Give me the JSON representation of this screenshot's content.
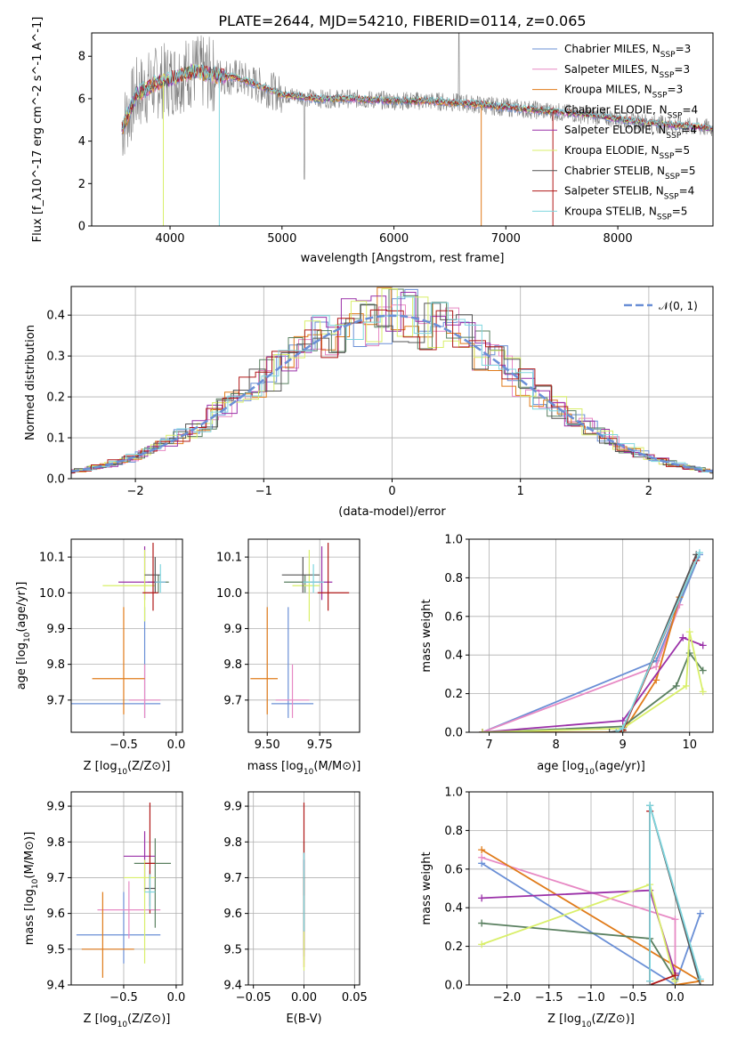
{
  "colors": [
    "#6a8fd6",
    "#e789c4",
    "#e07b1a",
    "#5a8060",
    "#9a30a8",
    "#d9ef6a",
    "#555555",
    "#b01818",
    "#7fd6df"
  ],
  "chart_data": [
    {
      "id": "spectrum",
      "type": "line",
      "title": "PLATE=2644, MJD=54210, FIBERID=0114, z=0.065",
      "xlabel": "wavelength [Angstrom, rest frame]",
      "ylabel": "Flux [f_λ10^-17 erg cm^-2 s^-1 A^-1]",
      "xlim": [
        3300,
        8850
      ],
      "ylim": [
        0,
        9.1
      ],
      "xticks": [
        4000,
        5000,
        6000,
        7000,
        8000
      ],
      "yticks": [
        0,
        2,
        4,
        6,
        8
      ],
      "legend_position": "top-right",
      "legend": [
        {
          "base": "Chabrier MILES, N",
          "sub": "SSP",
          "suffix": "=3"
        },
        {
          "base": "Salpeter MILES, N",
          "sub": "SSP",
          "suffix": "=3"
        },
        {
          "base": "Kroupa MILES, N",
          "sub": "SSP",
          "suffix": "=3"
        },
        {
          "base": "Chabrier ELODIE, N",
          "sub": "SSP",
          "suffix": "=4"
        },
        {
          "base": "Salpeter ELODIE, N",
          "sub": "SSP",
          "suffix": "=4"
        },
        {
          "base": "Kroupa ELODIE, N",
          "sub": "SSP",
          "suffix": "=5"
        },
        {
          "base": "Chabrier STELIB, N",
          "sub": "SSP",
          "suffix": "=5"
        },
        {
          "base": "Salpeter STELIB, N",
          "sub": "SSP",
          "suffix": "=4"
        },
        {
          "base": "Kroupa STELIB, N",
          "sub": "SSP",
          "suffix": "=5"
        }
      ],
      "continuum": [
        [
          3570,
          4.6
        ],
        [
          3700,
          6.2
        ],
        [
          3900,
          6.8
        ],
        [
          4000,
          6.9
        ],
        [
          4200,
          7.3
        ],
        [
          4400,
          7.1
        ],
        [
          4600,
          7.0
        ],
        [
          4800,
          6.6
        ],
        [
          5000,
          6.2
        ],
        [
          5300,
          6.0
        ],
        [
          5600,
          6.0
        ],
        [
          6000,
          5.9
        ],
        [
          6300,
          5.9
        ],
        [
          6600,
          5.8
        ],
        [
          7000,
          5.6
        ],
        [
          7400,
          5.4
        ],
        [
          7800,
          5.2
        ],
        [
          8200,
          4.9
        ],
        [
          8600,
          4.7
        ],
        [
          8850,
          4.6
        ]
      ]
    },
    {
      "id": "residuals",
      "type": "line",
      "xlabel": "(data-model)/error",
      "ylabel": "Normed distribution",
      "xlim": [
        -2.5,
        2.5
      ],
      "ylim": [
        0,
        0.47
      ],
      "xticks": [
        -2,
        -1,
        0,
        1,
        2
      ],
      "yticks": [
        0.0,
        0.1,
        0.2,
        0.3,
        0.4
      ],
      "legend_position": "top-right",
      "legend": [
        {
          "label": "𝒩(0, 1)"
        }
      ],
      "gaussian": {
        "mu": 0,
        "sigma": 1
      }
    },
    {
      "id": "age_vs_Z",
      "type": "scatter",
      "xlabel": "Z [log10(Z/Z⊙)]",
      "ylabel": "age  [log10(age/yr)]",
      "xlim": [
        -1.0,
        0.06
      ],
      "ylim": [
        9.61,
        10.15
      ],
      "xticks": [
        -0.5,
        0.0
      ],
      "yticks": [
        9.7,
        9.8,
        9.9,
        10.0,
        10.1
      ],
      "points": [
        {
          "x": -0.3,
          "xe": [
            0.8,
            0.15
          ],
          "y": 9.69,
          "ye": [
            0.04,
            0.27
          ]
        },
        {
          "x": -0.3,
          "xe": [
            0.15,
            0.15
          ],
          "y": 9.7,
          "ye": [
            0.05,
            0.1
          ]
        },
        {
          "x": -0.5,
          "xe": [
            0.3,
            0.2
          ],
          "y": 9.76,
          "ye": [
            0.1,
            0.2
          ]
        },
        {
          "x": -0.17,
          "xe": [
            0.1,
            0.1
          ],
          "y": 10.03,
          "ye": [
            0.03,
            0.02
          ]
        },
        {
          "x": -0.3,
          "xe": [
            0.25,
            0.2
          ],
          "y": 10.03,
          "ye": [
            0.05,
            0.1
          ]
        },
        {
          "x": -0.3,
          "xe": [
            0.4,
            0.1
          ],
          "y": 10.02,
          "ye": [
            0.1,
            0.1
          ]
        },
        {
          "x": -0.2,
          "xe": [
            0.1,
            0.05
          ],
          "y": 10.05,
          "ye": [
            0.05,
            0.05
          ]
        },
        {
          "x": -0.22,
          "xe": [
            0.1,
            0.05
          ],
          "y": 10.0,
          "ye": [
            0.05,
            0.14
          ]
        },
        {
          "x": -0.15,
          "xe": [
            0.05,
            0.05
          ],
          "y": 10.03,
          "ye": [
            0.03,
            0.05
          ]
        }
      ]
    },
    {
      "id": "age_vs_mass",
      "type": "scatter",
      "xlabel": "mass [log10(M/M⊙)]",
      "ylabel": "",
      "xlim": [
        9.41,
        9.94
      ],
      "ylim": [
        9.61,
        10.15
      ],
      "xticks": [
        9.5,
        9.75
      ],
      "yticks": [
        9.7,
        9.8,
        9.9,
        10.0,
        10.1
      ],
      "points": [
        {
          "x": 9.6,
          "xe": [
            0.08,
            0.12
          ],
          "y": 9.69,
          "ye": [
            0.04,
            0.27
          ]
        },
        {
          "x": 9.62,
          "xe": [
            0.08,
            0.08
          ],
          "y": 9.7,
          "ye": [
            0.05,
            0.1
          ]
        },
        {
          "x": 9.5,
          "xe": [
            0.08,
            0.05
          ],
          "y": 9.76,
          "ye": [
            0.1,
            0.2
          ]
        },
        {
          "x": 9.68,
          "xe": [
            0.1,
            0.08
          ],
          "y": 10.03,
          "ye": [
            0.03,
            0.02
          ]
        },
        {
          "x": 9.76,
          "xe": [
            0.05,
            0.05
          ],
          "y": 10.03,
          "ye": [
            0.05,
            0.1
          ]
        },
        {
          "x": 9.7,
          "xe": [
            0.08,
            0.05
          ],
          "y": 10.02,
          "ye": [
            0.1,
            0.1
          ]
        },
        {
          "x": 9.67,
          "xe": [
            0.1,
            0.08
          ],
          "y": 10.05,
          "ye": [
            0.05,
            0.05
          ]
        },
        {
          "x": 9.79,
          "xe": [
            0.05,
            0.1
          ],
          "y": 10.0,
          "ye": [
            0.05,
            0.14
          ]
        },
        {
          "x": 9.72,
          "xe": [
            0.05,
            0.05
          ],
          "y": 10.03,
          "ye": [
            0.03,
            0.05
          ]
        }
      ]
    },
    {
      "id": "massweight_vs_age",
      "type": "line",
      "xlabel": "age  [log10(age/yr)]",
      "ylabel": "mass weight",
      "xlim": [
        6.7,
        10.35
      ],
      "ylim": [
        0,
        1.0
      ],
      "xticks": [
        7,
        8,
        9,
        10
      ],
      "yticks": [
        0.0,
        0.2,
        0.4,
        0.6,
        0.8,
        1.0
      ],
      "series": [
        {
          "points": [
            [
              6.9,
              0.0
            ],
            [
              9.5,
              0.37
            ],
            [
              10.15,
              0.92
            ]
          ]
        },
        {
          "points": [
            [
              6.9,
              0.0
            ],
            [
              9.5,
              0.34
            ],
            [
              9.85,
              0.66
            ]
          ]
        },
        {
          "points": [
            [
              6.9,
              0.0
            ],
            [
              9.0,
              0.0
            ],
            [
              9.5,
              0.27
            ],
            [
              9.85,
              0.7
            ]
          ]
        },
        {
          "points": [
            [
              6.9,
              0.0
            ],
            [
              9.0,
              0.03
            ],
            [
              9.8,
              0.24
            ],
            [
              10.0,
              0.41
            ],
            [
              10.2,
              0.32
            ]
          ]
        },
        {
          "points": [
            [
              6.9,
              0.0
            ],
            [
              9.0,
              0.06
            ],
            [
              9.9,
              0.49
            ],
            [
              10.2,
              0.45
            ]
          ]
        },
        {
          "points": [
            [
              6.9,
              0.0
            ],
            [
              9.0,
              0.02
            ],
            [
              9.95,
              0.24
            ],
            [
              10.0,
              0.52
            ],
            [
              10.2,
              0.21
            ]
          ]
        },
        {
          "points": [
            [
              8.8,
              0.0
            ],
            [
              9.0,
              0.01
            ],
            [
              10.1,
              0.92
            ]
          ]
        },
        {
          "points": [
            [
              8.9,
              0.0
            ],
            [
              9.0,
              0.01
            ],
            [
              10.1,
              0.89
            ]
          ]
        },
        {
          "points": [
            [
              8.9,
              0.0
            ],
            [
              9.0,
              0.02
            ],
            [
              10.15,
              0.93
            ]
          ]
        }
      ]
    },
    {
      "id": "mass_vs_Z",
      "type": "scatter",
      "xlabel": "Z [log10(Z/Z⊙)]",
      "ylabel": "mass [log10(M/M⊙)]",
      "xlim": [
        -1.0,
        0.06
      ],
      "ylim": [
        9.4,
        9.94
      ],
      "xticks": [
        -0.5,
        0.0
      ],
      "yticks": [
        9.4,
        9.5,
        9.6,
        9.7,
        9.8,
        9.9
      ],
      "points": [
        {
          "x": -0.5,
          "xe": [
            0.45,
            0.35
          ],
          "y": 9.54,
          "ye": [
            0.08,
            0.12
          ]
        },
        {
          "x": -0.45,
          "xe": [
            0.3,
            0.3
          ],
          "y": 9.61,
          "ye": [
            0.08,
            0.08
          ]
        },
        {
          "x": -0.7,
          "xe": [
            0.2,
            0.3
          ],
          "y": 9.5,
          "ye": [
            0.08,
            0.16
          ]
        },
        {
          "x": -0.2,
          "xe": [
            0.2,
            0.15
          ],
          "y": 9.74,
          "ye": [
            0.18,
            0.07
          ]
        },
        {
          "x": -0.3,
          "xe": [
            0.2,
            0.1
          ],
          "y": 9.76,
          "ye": [
            0.1,
            0.07
          ]
        },
        {
          "x": -0.3,
          "xe": [
            0.2,
            0.1
          ],
          "y": 9.7,
          "ye": [
            0.24,
            0.05
          ]
        },
        {
          "x": -0.25,
          "xe": [
            0.05,
            0.05
          ],
          "y": 9.67,
          "ye": [
            0.05,
            0.05
          ]
        },
        {
          "x": -0.25,
          "xe": [
            0.05,
            0.05
          ],
          "y": 9.74,
          "ye": [
            0.14,
            0.17
          ]
        },
        {
          "x": -0.25,
          "xe": [
            0.05,
            0.05
          ],
          "y": 9.66,
          "ye": [
            0.05,
            0.05
          ]
        }
      ]
    },
    {
      "id": "mass_vs_ebv",
      "type": "scatter",
      "xlabel": "E(B-V)",
      "ylabel": "",
      "xlim": [
        -0.055,
        0.055
      ],
      "ylim": [
        9.4,
        9.94
      ],
      "xticks": [
        -0.05,
        0.0,
        0.05
      ],
      "yticks": [
        9.4,
        9.5,
        9.6,
        9.7,
        9.8,
        9.9
      ],
      "points": [
        {
          "x": 0.0,
          "xe": [
            0,
            0
          ],
          "y": 9.6,
          "ye": [
            0.13,
            0.17
          ]
        },
        {
          "x": 0.0,
          "xe": [
            0,
            0
          ],
          "y": 9.55,
          "ye": [
            0.1,
            0.15
          ]
        },
        {
          "x": 0.0,
          "xe": [
            0,
            0
          ],
          "y": 9.5,
          "ye": [
            0.05,
            0.2
          ]
        },
        {
          "x": 0.0,
          "xe": [
            0,
            0
          ],
          "y": 9.7,
          "ye": [
            0.2,
            0.1
          ]
        },
        {
          "x": 0.0,
          "xe": [
            0,
            0
          ],
          "y": 9.6,
          "ye": [
            0.12,
            0.15
          ]
        },
        {
          "x": 0.0,
          "xe": [
            0,
            0
          ],
          "y": 9.6,
          "ye": [
            0.16,
            0.12
          ]
        },
        {
          "x": 0.0,
          "xe": [
            0,
            0
          ],
          "y": 9.65,
          "ye": [
            0.1,
            0.1
          ]
        },
        {
          "x": 0.0,
          "xe": [
            0,
            0
          ],
          "y": 9.75,
          "ye": [
            0.1,
            0.16
          ]
        },
        {
          "x": 0.0,
          "xe": [
            0,
            0
          ],
          "y": 9.65,
          "ye": [
            0.1,
            0.12
          ]
        }
      ]
    },
    {
      "id": "massweight_vs_Z",
      "type": "line",
      "xlabel": "Z [log10(Z/Z⊙)]",
      "ylabel": "mass weight",
      "xlim": [
        -2.45,
        0.45
      ],
      "ylim": [
        0,
        1.0
      ],
      "xticks": [
        -2.0,
        -1.5,
        -1.0,
        -0.5,
        0.0
      ],
      "yticks": [
        0.0,
        0.2,
        0.4,
        0.6,
        0.8,
        1.0
      ],
      "series": [
        {
          "points": [
            [
              -2.3,
              0.63
            ],
            [
              0.0,
              0.0
            ],
            [
              0.3,
              0.37
            ]
          ]
        },
        {
          "points": [
            [
              -2.3,
              0.66
            ],
            [
              0.0,
              0.34
            ],
            [
              0.0,
              0.0
            ]
          ]
        },
        {
          "points": [
            [
              -2.3,
              0.7
            ],
            [
              0.3,
              0.02
            ],
            [
              0.0,
              0.0
            ]
          ]
        },
        {
          "points": [
            [
              -2.3,
              0.32
            ],
            [
              -0.3,
              0.24
            ],
            [
              0.0,
              0.03
            ]
          ]
        },
        {
          "points": [
            [
              -2.3,
              0.45
            ],
            [
              -0.3,
              0.49
            ],
            [
              0.0,
              0.06
            ]
          ]
        },
        {
          "points": [
            [
              -2.3,
              0.21
            ],
            [
              -0.3,
              0.52
            ],
            [
              0.0,
              0.02
            ]
          ]
        },
        {
          "points": [
            [
              -0.3,
              0.02
            ],
            [
              -0.3,
              0.93
            ],
            [
              0.3,
              0.0
            ]
          ]
        },
        {
          "points": [
            [
              -0.3,
              0.9
            ],
            [
              -0.3,
              0.0
            ],
            [
              0.0,
              0.05
            ]
          ]
        },
        {
          "points": [
            [
              -0.3,
              0.02
            ],
            [
              -0.3,
              0.93
            ],
            [
              0.3,
              0.03
            ]
          ]
        }
      ]
    }
  ]
}
